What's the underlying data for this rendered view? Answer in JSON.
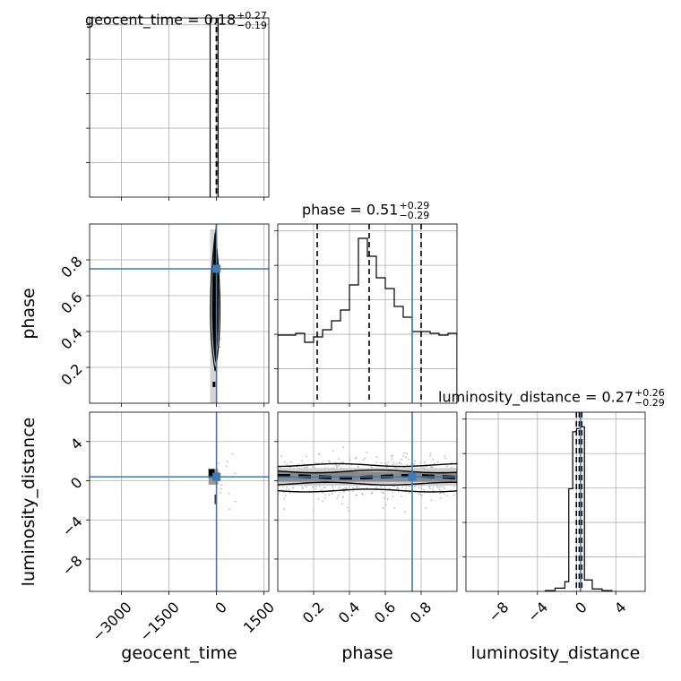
{
  "chart_data": {
    "type": "corner",
    "parameters": [
      "geocent_time",
      "phase",
      "luminosity_distance"
    ],
    "axis_labels": {
      "x": [
        "geocent_time",
        "phase",
        "luminosity_distance"
      ],
      "y": [
        "phase",
        "luminosity_distance"
      ]
    },
    "ranges": {
      "geocent_time": [
        -4000,
        1650
      ],
      "phase": [
        0.0,
        1.0
      ],
      "luminosity_distance": [
        -11.3,
        7.0
      ]
    },
    "ticks": {
      "geocent_time": [
        -3000,
        -1500,
        0,
        1500
      ],
      "phase_x": [
        0.2,
        0.4,
        0.6,
        0.8
      ],
      "phase_y": [
        0.2,
        0.4,
        0.6,
        0.8
      ],
      "luminosity_distance_x": [
        -8,
        -4,
        0,
        4
      ],
      "luminosity_distance_y": [
        -8,
        -4,
        0,
        4
      ]
    },
    "tick_labels": {
      "geocent_time": [
        "−3000",
        "−1500",
        "0",
        "1500"
      ],
      "phase": [
        "0.2",
        "0.4",
        "0.6",
        "0.8"
      ],
      "luminosity_distance": [
        "−8",
        "−4",
        "0",
        "4"
      ]
    },
    "titles": [
      {
        "param": "geocent_time",
        "median": "0.18",
        "plus": "+0.27",
        "minus": "−0.19"
      },
      {
        "param": "phase",
        "median": "0.51",
        "plus": "+0.29",
        "minus": "−0.29"
      },
      {
        "param": "luminosity_distance",
        "median": "0.27",
        "plus": "+0.26",
        "minus": "−0.29"
      }
    ],
    "injection": {
      "geocent_time": 0,
      "phase": 0.75,
      "luminosity_distance": 0.4
    },
    "quantiles": {
      "geocent_time": [
        -0.01,
        0.18,
        0.45
      ],
      "phase": [
        0.22,
        0.51,
        0.8
      ],
      "luminosity_distance": [
        -0.02,
        0.27,
        0.53
      ]
    },
    "histograms": {
      "geocent_time": {
        "edges": [
          -200,
          50
        ],
        "counts": [
          1.0
        ]
      },
      "phase": {
        "edges": [
          0.0,
          0.05,
          0.1,
          0.15,
          0.2,
          0.25,
          0.3,
          0.35,
          0.4,
          0.45,
          0.5,
          0.55,
          0.6,
          0.65,
          0.7,
          0.75,
          0.8,
          0.85,
          0.9,
          0.95,
          1.0
        ],
        "counts": [
          0.38,
          0.38,
          0.39,
          0.34,
          0.37,
          0.41,
          0.46,
          0.52,
          0.66,
          0.92,
          0.82,
          0.7,
          0.64,
          0.54,
          0.48,
          0.4,
          0.4,
          0.39,
          0.38,
          0.39
        ]
      },
      "luminosity_distance": {
        "edges": [
          -3.2,
          -2.2,
          -1.2,
          -0.8,
          -0.4,
          0.0,
          0.4,
          0.8,
          1.6,
          2.6,
          3.6
        ],
        "counts": [
          0.005,
          0.02,
          0.06,
          0.63,
          0.98,
          1.0,
          1.01,
          0.07,
          0.015,
          0.005
        ]
      }
    },
    "hist_ylim": {
      "geocent_time": [
        0,
        1.0
      ],
      "phase": [
        0,
        1.0
      ],
      "luminosity_distance": [
        0,
        1.1
      ]
    },
    "grid": true,
    "colors": {
      "injection": "#3d7ab6",
      "hist": "#000000",
      "quantile": "#000000",
      "scatter": "#bbbbbb"
    }
  }
}
